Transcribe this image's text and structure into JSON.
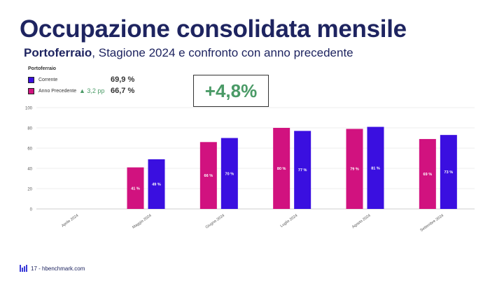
{
  "title": "Occupazione consolidata mensile",
  "subtitle": {
    "location": "Portoferraio",
    "rest": ", Stagione 2024 e confronto con anno precedente"
  },
  "legend": {
    "title": "Portoferraio",
    "items": [
      {
        "label": "Corrente",
        "value": "69,9 %",
        "color": "#3a0fe0"
      },
      {
        "label": "Anno Precedente",
        "value": "66,7 %",
        "color": "#d1127f"
      }
    ],
    "delta": "▲ 3,2 pp"
  },
  "kpi": "+4,8%",
  "footer": {
    "text": "17 - hbenchmark.com"
  },
  "chart_data": {
    "type": "bar",
    "categories": [
      "Aprile 2024",
      "Maggio 2024",
      "Giugno 2024",
      "Luglio 2024",
      "Agosto 2024",
      "Settembre 2024"
    ],
    "series": [
      {
        "name": "Anno Precedente",
        "color": "#d1127f",
        "values": [
          null,
          41,
          66,
          80,
          79,
          69
        ],
        "labels": [
          "",
          "41 %",
          "66 %",
          "80 %",
          "79 %",
          "69 %"
        ]
      },
      {
        "name": "Corrente",
        "color": "#3a0fe0",
        "values": [
          null,
          49,
          70,
          77,
          81,
          73
        ],
        "labels": [
          "",
          "49 %",
          "70 %",
          "77 %",
          "81 %",
          "73 %"
        ]
      }
    ],
    "yticks": [
      "0",
      "20",
      "40",
      "60",
      "80",
      "100"
    ],
    "ylim": [
      0,
      100
    ],
    "grid": true
  }
}
